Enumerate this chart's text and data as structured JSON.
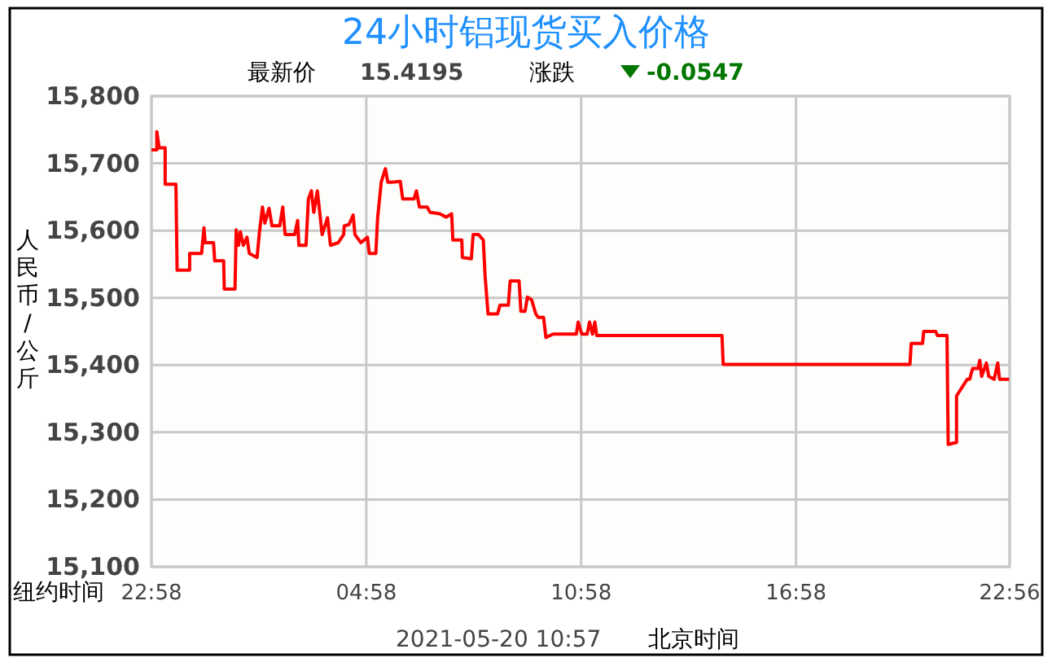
{
  "chart_data": {
    "type": "line",
    "title": "24小时铝现货买入价格",
    "ylabel": "人民币/公斤",
    "xlabel": "纽约时间",
    "annotations": [
      "最新价",
      "15.4195",
      "涨跌",
      "-0.0547",
      "2021-05-20 10:57",
      "北京时间"
    ],
    "color": "#ff0000",
    "grid": true,
    "xlim": [
      "2021-05-18T22:58",
      "2021-05-19T22:56"
    ],
    "xticks": [
      {
        "value": "2021-05-18T22:58",
        "label": "22:58"
      },
      {
        "value": "2021-05-19T04:58",
        "label": "04:58"
      },
      {
        "value": "2021-05-19T10:58",
        "label": "10:58"
      },
      {
        "value": "2021-05-19T16:58",
        "label": "16:58"
      },
      {
        "value": "2021-05-19T22:56",
        "label": "22:56"
      }
    ],
    "ylim": [
      15100,
      15800
    ],
    "yticks": [
      {
        "value": 15100,
        "label": "15,100"
      },
      {
        "value": 15200,
        "label": "15,200"
      },
      {
        "value": 15300,
        "label": "15,300"
      },
      {
        "value": 15400,
        "label": "15,400"
      },
      {
        "value": 15500,
        "label": "15,500"
      },
      {
        "value": 15600,
        "label": "15,600"
      },
      {
        "value": 15700,
        "label": "15,700"
      },
      {
        "value": 15800,
        "label": "15,800"
      }
    ],
    "x": [
      "2021-05-18T22:58",
      "2021-05-18T23:07",
      "2021-05-18T23:07",
      "2021-05-18T23:11",
      "2021-05-18T23:21",
      "2021-05-18T23:21",
      "2021-05-18T23:39",
      "2021-05-18T23:41",
      "2021-05-19T00:02",
      "2021-05-19T00:02",
      "2021-05-19T00:22",
      "2021-05-19T00:26",
      "2021-05-19T00:28",
      "2021-05-19T00:42",
      "2021-05-19T00:44",
      "2021-05-19T00:59",
      "2021-05-19T01:00",
      "2021-05-19T01:18",
      "2021-05-19T01:20",
      "2021-05-19T01:24",
      "2021-05-19T01:27",
      "2021-05-19T01:32",
      "2021-05-19T01:38",
      "2021-05-19T01:42",
      "2021-05-19T01:55",
      "2021-05-19T01:59",
      "2021-05-19T02:04",
      "2021-05-19T02:08",
      "2021-05-19T02:15",
      "2021-05-19T02:20",
      "2021-05-19T02:33",
      "2021-05-19T02:38",
      "2021-05-19T02:42",
      "2021-05-19T02:58",
      "2021-05-19T03:03",
      "2021-05-19T03:05",
      "2021-05-19T03:17",
      "2021-05-19T03:21",
      "2021-05-19T03:26",
      "2021-05-19T03:30",
      "2021-05-19T03:36",
      "2021-05-19T03:40",
      "2021-05-19T03:44",
      "2021-05-19T03:53",
      "2021-05-19T03:58",
      "2021-05-19T04:11",
      "2021-05-19T04:20",
      "2021-05-19T04:21",
      "2021-05-19T04:29",
      "2021-05-19T04:36",
      "2021-05-19T04:39",
      "2021-05-19T04:49",
      "2021-05-19T05:00",
      "2021-05-19T05:03",
      "2021-05-19T05:14",
      "2021-05-19T05:17",
      "2021-05-19T05:23",
      "2021-05-19T05:30",
      "2021-05-19T05:34",
      "2021-05-19T05:41",
      "2021-05-19T05:55",
      "2021-05-19T05:59",
      "2021-05-19T06:18",
      "2021-05-19T06:22",
      "2021-05-19T06:27",
      "2021-05-19T06:40",
      "2021-05-19T06:45",
      "2021-05-19T07:01",
      "2021-05-19T07:12",
      "2021-05-19T07:21",
      "2021-05-19T07:23",
      "2021-05-19T07:38",
      "2021-05-19T07:39",
      "2021-05-19T07:54",
      "2021-05-19T07:57",
      "2021-05-19T08:06",
      "2021-05-19T08:14",
      "2021-05-19T08:17",
      "2021-05-19T08:22",
      "2021-05-19T08:38",
      "2021-05-19T08:42",
      "2021-05-19T08:56",
      "2021-05-19T08:59",
      "2021-05-19T09:14",
      "2021-05-19T09:17",
      "2021-05-19T09:24",
      "2021-05-19T09:28",
      "2021-05-19T09:35",
      "2021-05-19T09:42",
      "2021-05-19T09:46",
      "2021-05-19T09:55",
      "2021-05-19T09:59",
      "2021-05-19T10:11",
      "2021-05-19T10:50",
      "2021-05-19T10:53",
      "2021-05-19T10:59",
      "2021-05-19T11:08",
      "2021-05-19T11:12",
      "2021-05-19T11:17",
      "2021-05-19T11:21",
      "2021-05-19T11:24",
      "2021-05-19T14:54",
      "2021-05-19T14:56",
      "2021-05-19T20:09",
      "2021-05-19T20:11",
      "2021-05-19T20:30",
      "2021-05-19T20:32",
      "2021-05-19T20:52",
      "2021-05-19T20:55",
      "2021-05-19T21:11",
      "2021-05-19T21:13",
      "2021-05-19T21:27",
      "2021-05-19T21:27",
      "2021-05-19T21:45",
      "2021-05-19T21:49",
      "2021-05-19T21:54",
      "2021-05-19T22:03",
      "2021-05-19T22:06",
      "2021-05-19T22:09",
      "2021-05-19T22:17",
      "2021-05-19T22:21",
      "2021-05-19T22:30",
      "2021-05-19T22:36",
      "2021-05-19T22:39",
      "2021-05-19T22:55"
    ],
    "values": [
      15720,
      15720,
      15747,
      15723,
      15723,
      15669,
      15669,
      15541,
      15541,
      15566,
      15566,
      15604,
      15582,
      15582,
      15555,
      15555,
      15513,
      15513,
      15601,
      15578,
      15598,
      15578,
      15590,
      15566,
      15560,
      15598,
      15635,
      15611,
      15633,
      15607,
      15607,
      15635,
      15594,
      15594,
      15615,
      15578,
      15578,
      15647,
      15659,
      15627,
      15659,
      15627,
      15594,
      15619,
      15578,
      15582,
      15594,
      15607,
      15609,
      15623,
      15594,
      15582,
      15590,
      15566,
      15566,
      15619,
      15672,
      15692,
      15672,
      15672,
      15673,
      15647,
      15647,
      15659,
      15635,
      15635,
      15627,
      15625,
      15620,
      15625,
      15586,
      15586,
      15560,
      15558,
      15594,
      15594,
      15586,
      15533,
      15476,
      15476,
      15489,
      15489,
      15525,
      15525,
      15480,
      15480,
      15501,
      15497,
      15476,
      15471,
      15471,
      15441,
      15446,
      15446,
      15464,
      15446,
      15446,
      15464,
      15446,
      15464,
      15444,
      15444,
      15401,
      15401,
      15432,
      15432,
      15450,
      15450,
      15444,
      15444,
      15282,
      15285,
      15354,
      15379,
      15379,
      15395,
      15395,
      15407,
      15383,
      15403,
      15383,
      15379,
      15403,
      15379,
      15379
    ]
  }
}
